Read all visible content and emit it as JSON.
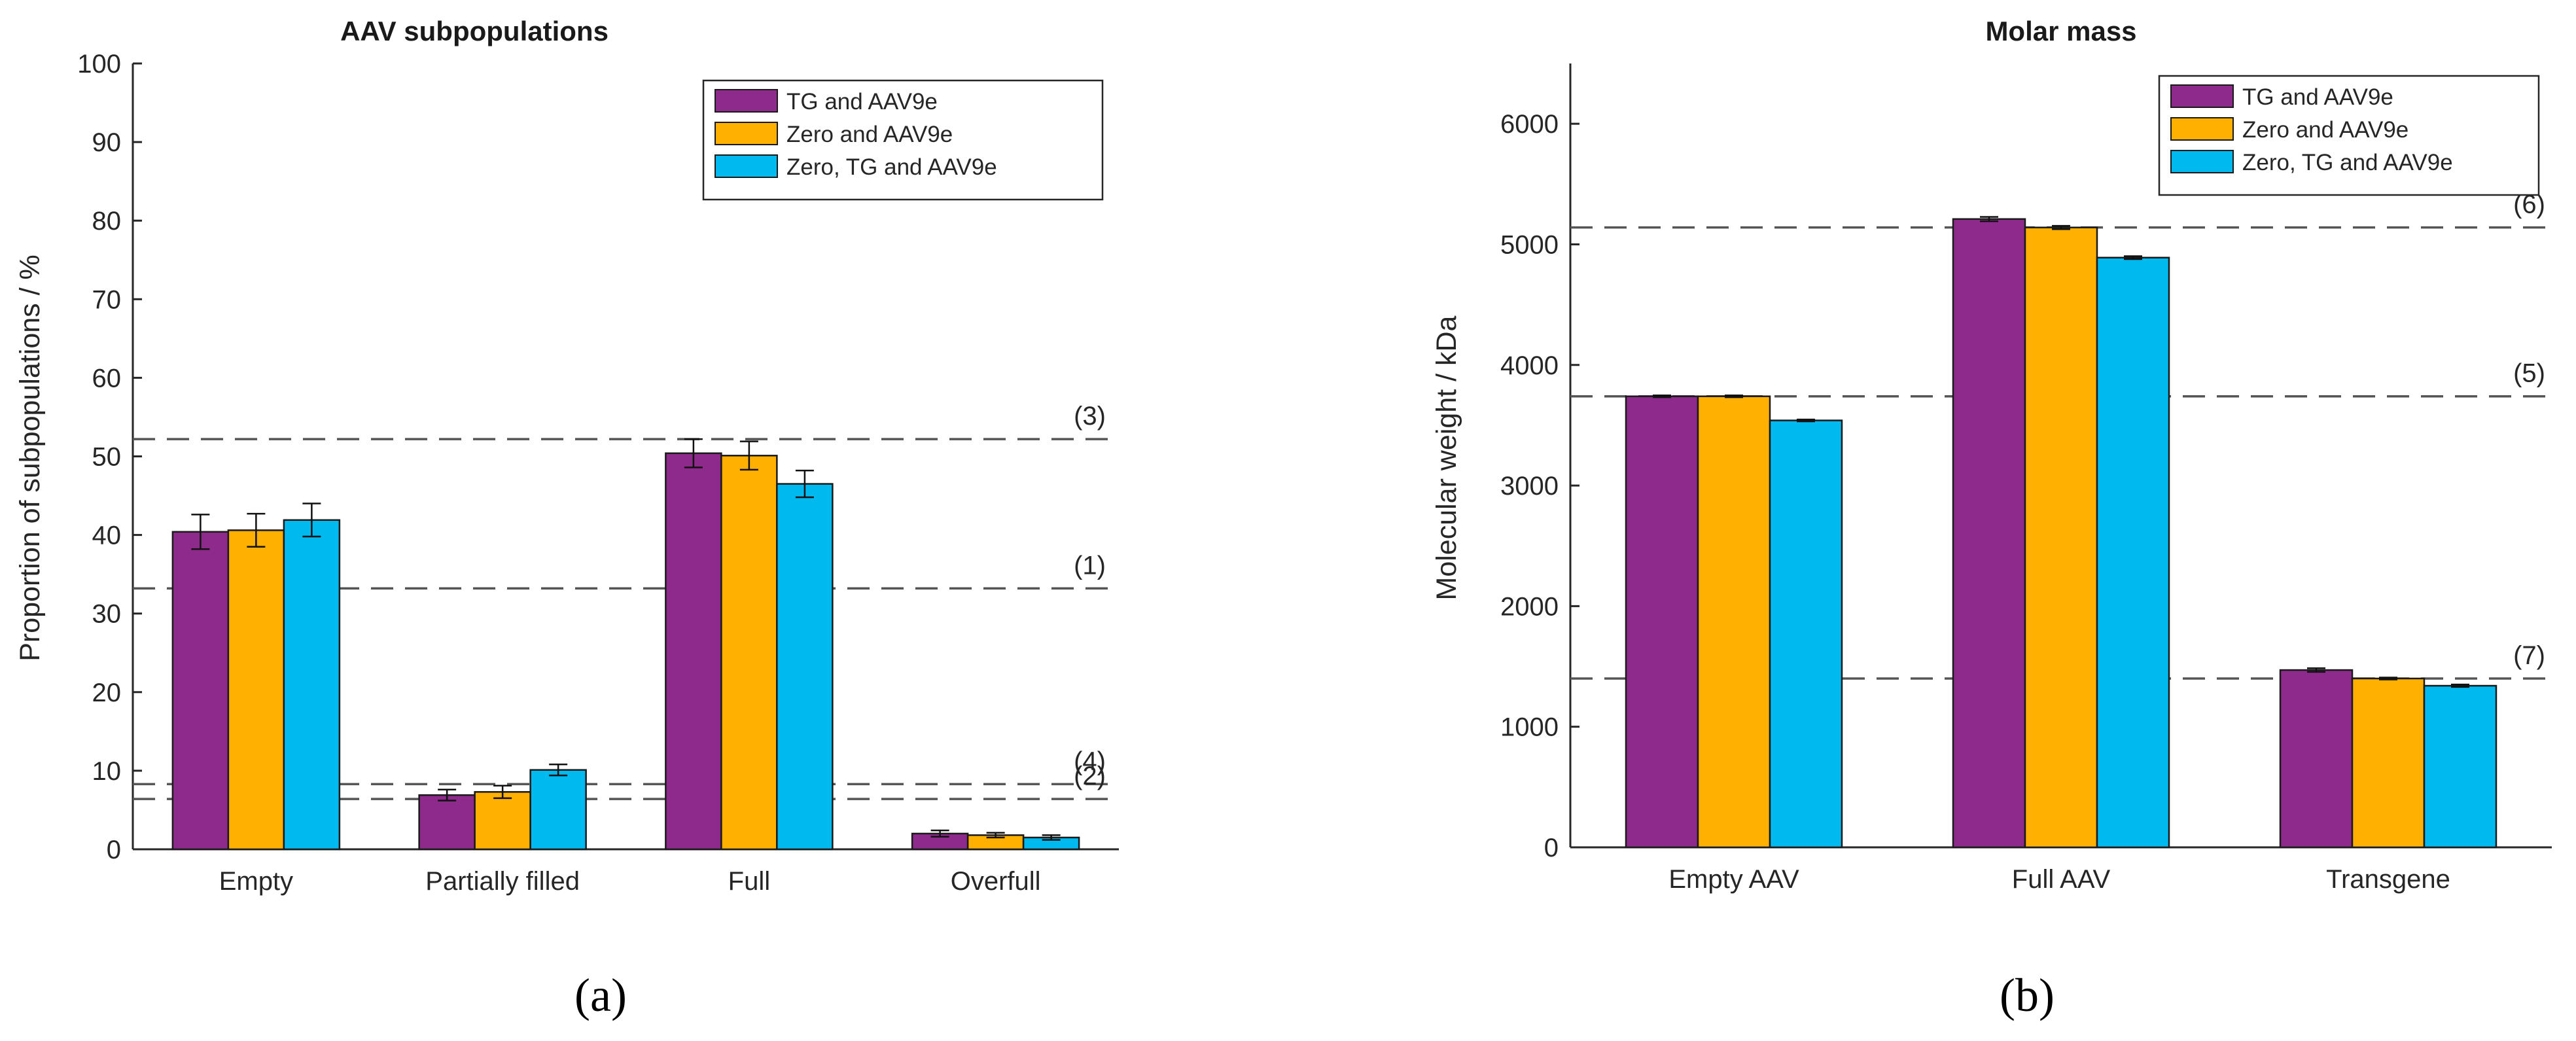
{
  "chart_data": [
    {
      "type": "bar",
      "panel_label": "(a)",
      "title": "AAV subpopulations",
      "xlabel": "",
      "ylabel": "Proportion of subpopulations / %",
      "categories": [
        "Empty",
        "Partially filled",
        "Full",
        "Overfull"
      ],
      "ylim": [
        0,
        100
      ],
      "yticks": [
        0,
        10,
        20,
        30,
        40,
        50,
        60,
        70,
        80,
        90,
        100
      ],
      "series": [
        {
          "name": "TG and AAV9e",
          "color": "#8e2a8c",
          "values": [
            40.4,
            6.9,
            50.4,
            2.0
          ],
          "errors": [
            2.2,
            0.7,
            1.8,
            0.4
          ]
        },
        {
          "name": "Zero and AAV9e",
          "color": "#ffb000",
          "values": [
            40.6,
            7.3,
            50.1,
            1.8
          ],
          "errors": [
            2.1,
            0.8,
            1.8,
            0.3
          ]
        },
        {
          "name": "Zero, TG and AAV9e",
          "color": "#00b9ef",
          "values": [
            41.9,
            10.1,
            46.5,
            1.5
          ],
          "errors": [
            2.1,
            0.7,
            1.7,
            0.3
          ]
        }
      ],
      "reference_lines": [
        {
          "label": "(3)",
          "value": 52.2
        },
        {
          "label": "(1)",
          "value": 33.2
        },
        {
          "label": "(4)",
          "value": 8.3
        },
        {
          "label": "(2)",
          "value": 6.4
        }
      ],
      "legend_position": "top-right",
      "grid": false
    },
    {
      "type": "bar",
      "panel_label": "(b)",
      "title": "Molar mass",
      "xlabel": "",
      "ylabel": "Molecular weight / kDa",
      "categories": [
        "Empty AAV",
        "Full AAV",
        "Transgene"
      ],
      "ylim": [
        0,
        6500
      ],
      "yticks": [
        0,
        1000,
        2000,
        3000,
        4000,
        5000,
        6000
      ],
      "series": [
        {
          "name": "TG and AAV9e",
          "color": "#8e2a8c",
          "values": [
            3740,
            5210,
            1470
          ],
          "errors": [
            8,
            18,
            15
          ]
        },
        {
          "name": "Zero and AAV9e",
          "color": "#ffb000",
          "values": [
            3740,
            5140,
            1400
          ],
          "errors": [
            8,
            14,
            8
          ]
        },
        {
          "name": "Zero, TG and AAV9e",
          "color": "#00b9ef",
          "values": [
            3540,
            4890,
            1340
          ],
          "errors": [
            8,
            12,
            10
          ]
        }
      ],
      "reference_lines": [
        {
          "label": "(6)",
          "value": 5140
        },
        {
          "label": "(5)",
          "value": 3740
        },
        {
          "label": "(7)",
          "value": 1400
        }
      ],
      "legend_position": "top-right",
      "grid": false
    }
  ]
}
